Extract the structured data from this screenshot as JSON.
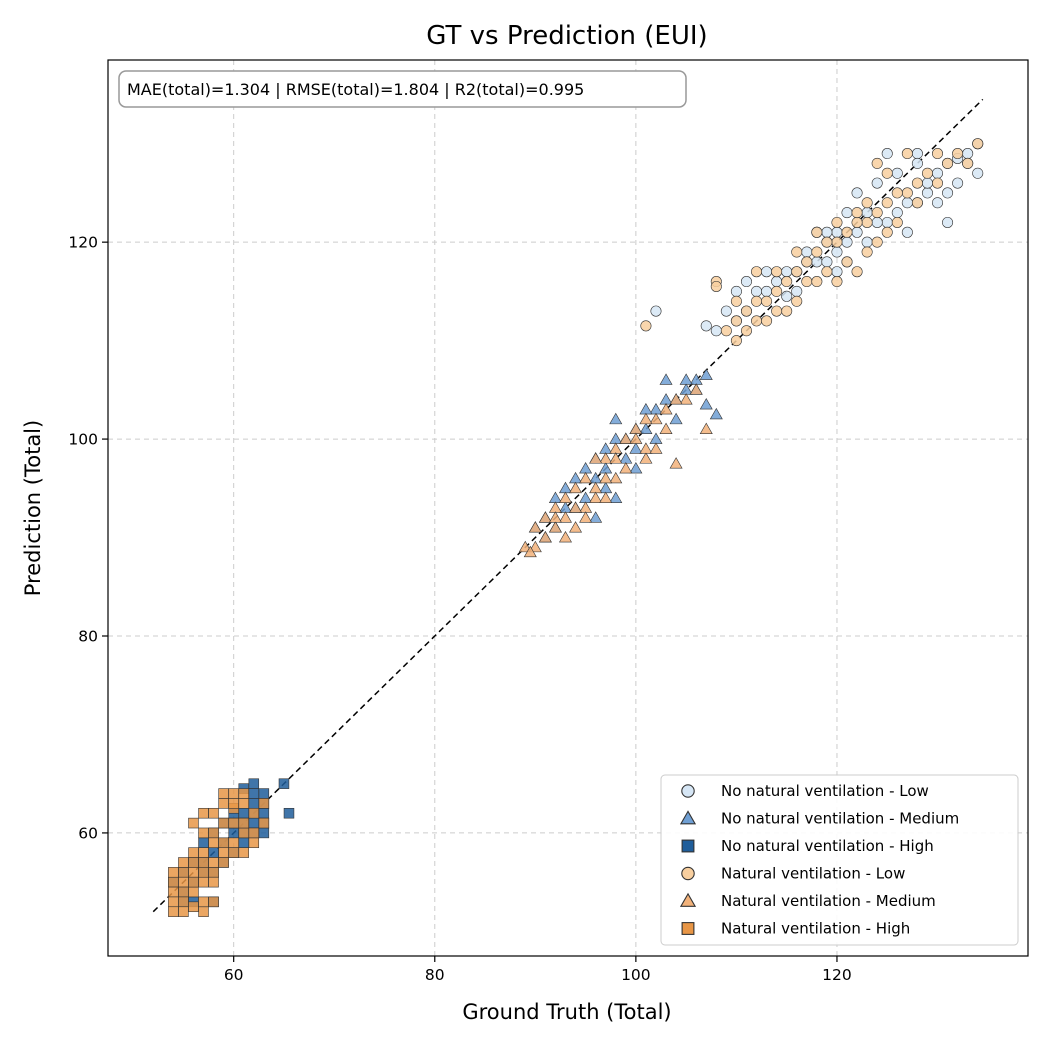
{
  "chart_data": {
    "type": "scatter",
    "title": "GT vs Prediction (EUI)",
    "xlabel": "Ground Truth (Total)",
    "ylabel": "Prediction (Total)",
    "xlim": [
      47.5,
      139
    ],
    "ylim": [
      47.5,
      138.5
    ],
    "xticks": [
      60,
      80,
      100,
      120
    ],
    "yticks": [
      60,
      80,
      100,
      120
    ],
    "grid": true,
    "legend_position": "lower-right",
    "metrics_text": "MAE(total)=1.304 | RMSE(total)=1.804 | R2(total)=0.995",
    "reference_line": {
      "x": [
        52,
        134.5
      ],
      "y": [
        52,
        134.5
      ]
    },
    "series": [
      {
        "name": "No natural ventilation - Low",
        "marker": "circle",
        "color": "#d6e6f5",
        "points": [
          [
            134,
            130
          ],
          [
            133,
            129
          ],
          [
            132,
            128.5
          ],
          [
            131,
            128
          ],
          [
            130,
            127
          ],
          [
            134,
            127
          ],
          [
            132,
            126
          ],
          [
            131,
            125
          ],
          [
            129,
            125
          ],
          [
            128,
            124
          ],
          [
            127,
            124
          ],
          [
            126,
            123
          ],
          [
            125,
            122
          ],
          [
            124,
            122
          ],
          [
            131,
            122
          ],
          [
            122,
            121
          ],
          [
            121,
            120
          ],
          [
            120,
            119
          ],
          [
            120,
            121
          ],
          [
            119,
            120
          ],
          [
            118,
            118
          ],
          [
            117,
            119
          ],
          [
            116,
            117
          ],
          [
            115,
            117
          ],
          [
            114,
            116
          ],
          [
            113,
            115
          ],
          [
            112,
            115
          ],
          [
            111,
            116
          ],
          [
            110,
            115
          ],
          [
            110,
            112
          ],
          [
            109,
            113
          ],
          [
            108,
            111
          ],
          [
            107,
            111.5
          ],
          [
            102,
            113
          ],
          [
            122,
            125
          ],
          [
            123,
            123
          ],
          [
            126,
            127
          ],
          [
            128,
            129
          ],
          [
            125,
            129
          ],
          [
            124,
            126
          ],
          [
            121,
            123
          ],
          [
            119,
            121
          ],
          [
            117,
            118
          ],
          [
            115,
            114.5
          ],
          [
            113,
            117
          ],
          [
            111,
            113
          ],
          [
            130,
            124
          ],
          [
            127,
            121
          ],
          [
            129,
            126
          ],
          [
            133,
            128
          ],
          [
            128,
            128
          ],
          [
            123,
            120
          ],
          [
            120,
            117
          ],
          [
            118,
            121
          ],
          [
            116,
            115
          ],
          [
            119,
            118
          ],
          [
            121,
            118
          ]
        ]
      },
      {
        "name": "No natural ventilation - Medium",
        "marker": "triangle",
        "color": "#6f9fd3",
        "points": [
          [
            107,
            106.5
          ],
          [
            106,
            106
          ],
          [
            105,
            105
          ],
          [
            104,
            104
          ],
          [
            103,
            104
          ],
          [
            102,
            103
          ],
          [
            101,
            101
          ],
          [
            100,
            101
          ],
          [
            99,
            100
          ],
          [
            98,
            100
          ],
          [
            97,
            99
          ],
          [
            96,
            98
          ],
          [
            95,
            97
          ],
          [
            94,
            96
          ],
          [
            93,
            95
          ],
          [
            92,
            94
          ],
          [
            91,
            92
          ],
          [
            90,
            91
          ],
          [
            108,
            102.5
          ],
          [
            107,
            103.5
          ],
          [
            106,
            105
          ],
          [
            104,
            102
          ],
          [
            101,
            103
          ],
          [
            100,
            99
          ],
          [
            98,
            102
          ],
          [
            99,
            98
          ],
          [
            97,
            97
          ],
          [
            96,
            96
          ],
          [
            95,
            94
          ],
          [
            94,
            93
          ],
          [
            93,
            93
          ],
          [
            92,
            91
          ],
          [
            91,
            90
          ],
          [
            98,
            94
          ],
          [
            96,
            92
          ],
          [
            103,
            106
          ],
          [
            105,
            106
          ],
          [
            102,
            100
          ],
          [
            100,
            97
          ],
          [
            97,
            95
          ]
        ]
      },
      {
        "name": "No natural ventilation - High",
        "marker": "square",
        "color": "#1f5d9a",
        "points": [
          [
            62,
            65
          ],
          [
            61,
            64.5
          ],
          [
            62,
            64
          ],
          [
            63,
            64
          ],
          [
            62,
            63
          ],
          [
            61,
            62
          ],
          [
            63,
            62
          ],
          [
            62,
            61
          ],
          [
            61,
            60
          ],
          [
            63,
            61
          ],
          [
            60,
            60
          ],
          [
            61,
            59
          ],
          [
            60,
            58
          ],
          [
            59,
            57
          ],
          [
            58,
            56
          ],
          [
            57,
            56
          ],
          [
            56,
            55
          ],
          [
            55,
            54
          ],
          [
            65,
            65
          ],
          [
            65.5,
            62
          ],
          [
            63,
            63
          ],
          [
            62,
            62
          ],
          [
            61,
            61
          ],
          [
            60,
            61
          ],
          [
            59,
            59
          ],
          [
            58,
            58
          ],
          [
            57,
            57
          ],
          [
            58,
            53
          ],
          [
            56,
            53
          ],
          [
            55,
            53
          ],
          [
            63,
            60
          ],
          [
            62,
            60
          ],
          [
            60,
            62
          ],
          [
            59,
            61
          ],
          [
            58,
            60
          ],
          [
            57,
            59
          ],
          [
            56,
            57
          ],
          [
            55,
            56
          ],
          [
            54,
            55
          ]
        ]
      },
      {
        "name": "Natural ventilation - Low",
        "marker": "circle",
        "color": "#f8cf9f",
        "points": [
          [
            134,
            130
          ],
          [
            132,
            129
          ],
          [
            131,
            128
          ],
          [
            130,
            126
          ],
          [
            129,
            127
          ],
          [
            128,
            126
          ],
          [
            127,
            125
          ],
          [
            126,
            125
          ],
          [
            125,
            124
          ],
          [
            124,
            123
          ],
          [
            123,
            122
          ],
          [
            122,
            122
          ],
          [
            121,
            121
          ],
          [
            120,
            120
          ],
          [
            119,
            120
          ],
          [
            118,
            119
          ],
          [
            117,
            118
          ],
          [
            116,
            117
          ],
          [
            115,
            116
          ],
          [
            114,
            115
          ],
          [
            113,
            114
          ],
          [
            112,
            114
          ],
          [
            111,
            113
          ],
          [
            110,
            112
          ],
          [
            109,
            111
          ],
          [
            108,
            116
          ],
          [
            108,
            115.5
          ],
          [
            101,
            111.5
          ],
          [
            124,
            128
          ],
          [
            125,
            127
          ],
          [
            130,
            129
          ],
          [
            127,
            129
          ],
          [
            133,
            128
          ],
          [
            121,
            118
          ],
          [
            119,
            117
          ],
          [
            117,
            116
          ],
          [
            115,
            113
          ],
          [
            113,
            112
          ],
          [
            111,
            111
          ],
          [
            110,
            114
          ],
          [
            112,
            117
          ],
          [
            114,
            117
          ],
          [
            116,
            119
          ],
          [
            118,
            121
          ],
          [
            120,
            122
          ],
          [
            122,
            123
          ],
          [
            123,
            124
          ],
          [
            128,
            124
          ],
          [
            126,
            122
          ],
          [
            125,
            121
          ],
          [
            124,
            120
          ],
          [
            123,
            119
          ],
          [
            122,
            117
          ],
          [
            120,
            116
          ],
          [
            118,
            116
          ],
          [
            116,
            114
          ],
          [
            114,
            113
          ],
          [
            112,
            112
          ],
          [
            110,
            110
          ]
        ]
      },
      {
        "name": "Natural ventilation - Medium",
        "marker": "triangle",
        "color": "#f2b27a",
        "points": [
          [
            106,
            105
          ],
          [
            105,
            104
          ],
          [
            104,
            104
          ],
          [
            103,
            103
          ],
          [
            102,
            102
          ],
          [
            101,
            102
          ],
          [
            100,
            101
          ],
          [
            99,
            100
          ],
          [
            98,
            99
          ],
          [
            97,
            98
          ],
          [
            96,
            98
          ],
          [
            95,
            96
          ],
          [
            94,
            95
          ],
          [
            93,
            94
          ],
          [
            92,
            93
          ],
          [
            91,
            92
          ],
          [
            90,
            91
          ],
          [
            89,
            89
          ],
          [
            107,
            101
          ],
          [
            104,
            97.5
          ],
          [
            101,
            98
          ],
          [
            99,
            97
          ],
          [
            98,
            96
          ],
          [
            97,
            96
          ],
          [
            96,
            95
          ],
          [
            95,
            93
          ],
          [
            94,
            93
          ],
          [
            93,
            92
          ],
          [
            92,
            91
          ],
          [
            91,
            90
          ],
          [
            90,
            89
          ],
          [
            89.5,
            88.5
          ],
          [
            100,
            100
          ],
          [
            101,
            99
          ],
          [
            103,
            101
          ],
          [
            102,
            99
          ],
          [
            98,
            98
          ],
          [
            96,
            94
          ],
          [
            95,
            92
          ],
          [
            97,
            94
          ],
          [
            94,
            91
          ],
          [
            93,
            90
          ],
          [
            92,
            92
          ]
        ]
      },
      {
        "name": "Natural ventilation - High",
        "marker": "square",
        "color": "#e89646",
        "points": [
          [
            60,
            64
          ],
          [
            59,
            63
          ],
          [
            60,
            62.5
          ],
          [
            61,
            63
          ],
          [
            60,
            61
          ],
          [
            59,
            61
          ],
          [
            58,
            60
          ],
          [
            57,
            60
          ],
          [
            58,
            59
          ],
          [
            57,
            58
          ],
          [
            56,
            58
          ],
          [
            57,
            57
          ],
          [
            56,
            57
          ],
          [
            55,
            56
          ],
          [
            56,
            56
          ],
          [
            55,
            55
          ],
          [
            54,
            55
          ],
          [
            55,
            54
          ],
          [
            54,
            54
          ],
          [
            54,
            53
          ],
          [
            55,
            53
          ],
          [
            56,
            52.5
          ],
          [
            57,
            52
          ],
          [
            58,
            53
          ],
          [
            56,
            54
          ],
          [
            57,
            55
          ],
          [
            58,
            56
          ],
          [
            59,
            58
          ],
          [
            60,
            59
          ],
          [
            61,
            60
          ],
          [
            62,
            62
          ],
          [
            63,
            63
          ],
          [
            61,
            61
          ],
          [
            62,
            59
          ],
          [
            59,
            59
          ],
          [
            58,
            57
          ],
          [
            57,
            56
          ],
          [
            56,
            55
          ],
          [
            55,
            57
          ],
          [
            54,
            56
          ],
          [
            56,
            61
          ],
          [
            57,
            62
          ],
          [
            58,
            62
          ],
          [
            59,
            64
          ],
          [
            60,
            63
          ],
          [
            61,
            64
          ],
          [
            58,
            55
          ],
          [
            59,
            57
          ],
          [
            60,
            58
          ],
          [
            61,
            58
          ],
          [
            62,
            60
          ],
          [
            63,
            61
          ],
          [
            57,
            53
          ],
          [
            55,
            52
          ],
          [
            54,
            52
          ]
        ]
      }
    ]
  }
}
